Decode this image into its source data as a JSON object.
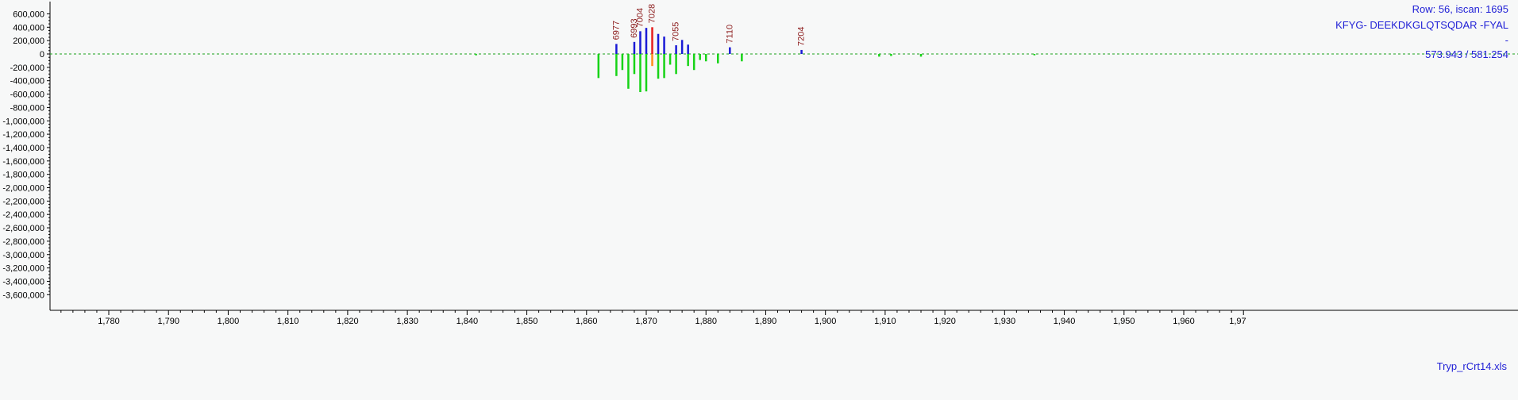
{
  "chart_data": {
    "type": "bar",
    "title": "",
    "xlabel": "",
    "ylabel": "",
    "xlim": [
      1770,
      1970
    ],
    "ylim": [
      -3700000,
      700000
    ],
    "grid": false,
    "x_ticks": [
      1780,
      1790,
      1800,
      1810,
      1820,
      1830,
      1840,
      1850,
      1860,
      1870,
      1880,
      1890,
      1900,
      1910,
      1920,
      1930,
      1940,
      1950,
      1960
    ],
    "x_tick_labels": [
      "1,780",
      "1,790",
      "1,800",
      "1,810",
      "1,820",
      "1,830",
      "1,840",
      "1,850",
      "1,860",
      "1,870",
      "1,880",
      "1,890",
      "1,900",
      "1,910",
      "1,920",
      "1,930",
      "1,940",
      "1,950",
      "1,960"
    ],
    "x_tick_label_partial": "1,97",
    "y_ticks": [
      600000,
      400000,
      200000,
      0,
      -200000,
      -400000,
      -600000,
      -800000,
      -1000000,
      -1200000,
      -1400000,
      -1600000,
      -1800000,
      -2000000,
      -2200000,
      -2400000,
      -2600000,
      -2800000,
      -3000000,
      -3200000,
      -3400000,
      -3600000
    ],
    "y_tick_labels": [
      "600,000",
      "400,000",
      "200,000",
      "0",
      "-200,000",
      "-400,000",
      "-600,000",
      "-800,000",
      "-1,000,000",
      "-1,200,000",
      "-1,400,000",
      "-1,600,000",
      "-1,800,000",
      "-2,000,000",
      "-2,200,000",
      "-2,400,000",
      "-2,600,000",
      "-2,800,000",
      "-3,000,000",
      "-3,200,000",
      "-3,400,000",
      "-3,600,000"
    ],
    "series": [
      {
        "color": "#1a1ad6",
        "points": [
          {
            "x": 1865.0,
            "y": 150000
          },
          {
            "x": 1868.0,
            "y": 180000
          },
          {
            "x": 1869.0,
            "y": 340000
          },
          {
            "x": 1870.0,
            "y": 390000
          },
          {
            "x": 1872.0,
            "y": 300000
          },
          {
            "x": 1873.0,
            "y": 260000
          },
          {
            "x": 1875.0,
            "y": 130000
          },
          {
            "x": 1876.0,
            "y": 210000
          },
          {
            "x": 1877.0,
            "y": 140000
          },
          {
            "x": 1884.0,
            "y": 100000
          },
          {
            "x": 1896.0,
            "y": 60000
          }
        ]
      },
      {
        "color": "#e61e1e",
        "points": [
          {
            "x": 1871.0,
            "y": 400000
          }
        ]
      },
      {
        "color": "#ff8c1a",
        "points": [
          {
            "x": 1871.0,
            "y": -180000
          }
        ]
      },
      {
        "color": "#17d317",
        "points": [
          {
            "x": 1841.5,
            "y": -20000
          },
          {
            "x": 1862.0,
            "y": -360000
          },
          {
            "x": 1865.0,
            "y": -330000
          },
          {
            "x": 1866.0,
            "y": -240000
          },
          {
            "x": 1867.0,
            "y": -520000
          },
          {
            "x": 1868.0,
            "y": -300000
          },
          {
            "x": 1869.0,
            "y": -570000
          },
          {
            "x": 1870.0,
            "y": -560000
          },
          {
            "x": 1872.0,
            "y": -370000
          },
          {
            "x": 1873.0,
            "y": -360000
          },
          {
            "x": 1874.0,
            "y": -160000
          },
          {
            "x": 1875.0,
            "y": -300000
          },
          {
            "x": 1877.0,
            "y": -180000
          },
          {
            "x": 1878.0,
            "y": -240000
          },
          {
            "x": 1879.0,
            "y": -90000
          },
          {
            "x": 1880.0,
            "y": -110000
          },
          {
            "x": 1882.0,
            "y": -140000
          },
          {
            "x": 1886.0,
            "y": -110000
          },
          {
            "x": 1909.0,
            "y": -40000
          },
          {
            "x": 1911.0,
            "y": -30000
          },
          {
            "x": 1916.0,
            "y": -40000
          },
          {
            "x": 1935.0,
            "y": -20000
          }
        ]
      }
    ],
    "annotations": [
      {
        "x": 1865.0,
        "y": 150000,
        "text": "6977"
      },
      {
        "x": 1868.0,
        "y": 180000,
        "text": "6993"
      },
      {
        "x": 1869.0,
        "y": 340000,
        "text": "7004"
      },
      {
        "x": 1871.0,
        "y": 400000,
        "text": "7028"
      },
      {
        "x": 1875.0,
        "y": 130000,
        "text": "7055"
      },
      {
        "x": 1884.0,
        "y": 100000,
        "text": "7110"
      },
      {
        "x": 1896.0,
        "y": 60000,
        "text": "7204"
      }
    ],
    "colors": {
      "background": "#f7f8f8",
      "axis": "#000000",
      "zero_line": "#1aa21a",
      "annotation": "#8b1a1a",
      "info_text": "#1f1fd6"
    }
  },
  "info_panel": {
    "line1": "Row: 56, iscan: 1695",
    "line2": "KFYG- DEEKDKGLQTSQDAR -FYAL",
    "line3": "-",
    "line4": "573.943 / 581.254"
  },
  "footer": {
    "filename": "Tryp_rCrt14.xls"
  }
}
